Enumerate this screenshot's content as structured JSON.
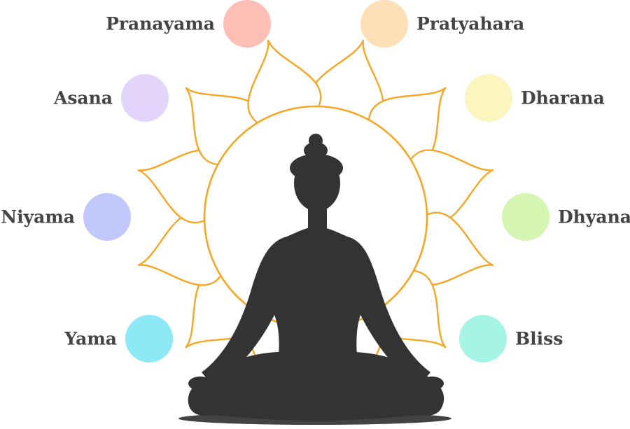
{
  "diagram": {
    "colors": {
      "lotus_stroke": "#f5a623",
      "silhouette": "#333333",
      "label_text": "#444444",
      "shadow": "#222222"
    },
    "nodes": [
      {
        "id": "yama",
        "label": "Yama",
        "color": "#8ee9f7",
        "side": "left"
      },
      {
        "id": "niyama",
        "label": "Niyama",
        "color": "#c2c8fb",
        "side": "left"
      },
      {
        "id": "asana",
        "label": "Asana",
        "color": "#e3d4fb",
        "side": "left"
      },
      {
        "id": "pranayama",
        "label": "Pranayama",
        "color": "#fdbfb5",
        "side": "left"
      },
      {
        "id": "pratyahara",
        "label": "Pratyahara",
        "color": "#fde0b8",
        "side": "right"
      },
      {
        "id": "dharana",
        "label": "Dharana",
        "color": "#fdf5c0",
        "side": "right"
      },
      {
        "id": "dhyana",
        "label": "Dhyana",
        "color": "#d5f5b2",
        "side": "right"
      },
      {
        "id": "bliss",
        "label": "Bliss",
        "color": "#a6f5e4",
        "side": "right"
      }
    ]
  }
}
